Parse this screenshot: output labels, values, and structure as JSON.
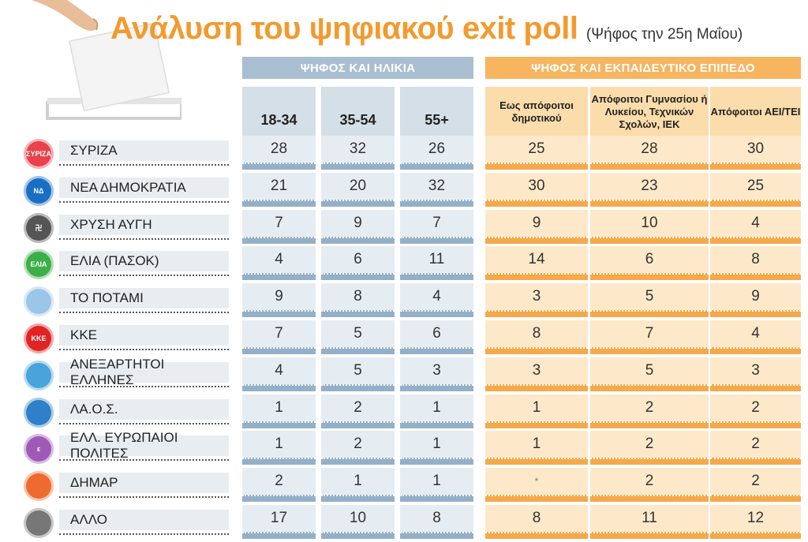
{
  "title": "Ανάλυση του ψηφιακού exit poll",
  "subtitle": "(Ψήφος την 25η Μαΐου)",
  "colors": {
    "accent": "#f39a2e",
    "age_header": "#a9bfd1",
    "edu_header": "#f7b55f"
  },
  "headers": {
    "age": "ΨΗΦΟΣ ΚΑΙ ΗΛΙΚΙΑ",
    "edu": "ΨΗΦΟΣ ΚΑΙ ΕΚΠΑΙΔΕΥΤΙΚΟ ΕΠΙΠΕΔΟ"
  },
  "chart_data": {
    "type": "table",
    "title": "Ανάλυση του ψηφιακού exit poll",
    "age_columns": [
      "18-34",
      "35-54",
      "55+"
    ],
    "edu_columns": [
      "Εως απόφοιτοι δημοτικού",
      "Απόφοιτοι Γυμνασίου ή Λυκείου, Τεχνικών Σχολών, ΙΕΚ",
      "Απόφοιτοι ΑΕΙ/ΤΕΙ"
    ],
    "rows": [
      {
        "party": "ΣΥΡΙΖΑ",
        "logo": "ΣΥΡΙΖΑ",
        "color": "#e8424a",
        "age": [
          "28",
          "32",
          "26"
        ],
        "edu": [
          "25",
          "28",
          "30"
        ]
      },
      {
        "party": "ΝΕΑ ΔΗΜΟΚΡΑΤΙΑ",
        "logo": "ΝΔ",
        "color": "#1a6fc4",
        "age": [
          "21",
          "20",
          "32"
        ],
        "edu": [
          "30",
          "23",
          "25"
        ]
      },
      {
        "party": "ΧΡΥΣΗ ΑΥΓΗ",
        "logo": "卍",
        "color": "#555555",
        "age": [
          "7",
          "9",
          "7"
        ],
        "edu": [
          "9",
          "10",
          "4"
        ]
      },
      {
        "party": "ΕΛΙΑ (ΠΑΣΟΚ)",
        "logo": "ΕΛΙΑ",
        "color": "#3cae4a",
        "age": [
          "4",
          "6",
          "11"
        ],
        "edu": [
          "14",
          "6",
          "8"
        ]
      },
      {
        "party": "ΤΟ ΠΟΤΑΜΙ",
        "logo": "",
        "color": "#9cc6e8",
        "age": [
          "9",
          "8",
          "4"
        ],
        "edu": [
          "3",
          "5",
          "9"
        ]
      },
      {
        "party": "ΚΚΕ",
        "logo": "ΚΚΕ",
        "color": "#e02424",
        "age": [
          "7",
          "5",
          "6"
        ],
        "edu": [
          "8",
          "7",
          "4"
        ]
      },
      {
        "party": "ΑΝΕΞΑΡΤΗΤΟΙ ΕΛΛΗΝΕΣ",
        "logo": "",
        "color": "#4aa3db",
        "age": [
          "4",
          "5",
          "3"
        ],
        "edu": [
          "3",
          "5",
          "3"
        ]
      },
      {
        "party": "ΛΑ.Ο.Σ.",
        "logo": "",
        "color": "#2f7fc9",
        "age": [
          "1",
          "2",
          "1"
        ],
        "edu": [
          "1",
          "2",
          "2"
        ]
      },
      {
        "party": "ΕΛΛ. ΕΥΡΩΠΑΙΟΙ ΠΟΛΙΤΕΣ",
        "logo": "ε",
        "color": "#9f5ab8",
        "age": [
          "1",
          "2",
          "1"
        ],
        "edu": [
          "1",
          "2",
          "2"
        ]
      },
      {
        "party": "ΔΗΜΑΡ",
        "logo": "",
        "color": "#ef6a2e",
        "age": [
          "2",
          "1",
          "1"
        ],
        "edu": [
          "*",
          "2",
          "2"
        ]
      },
      {
        "party": "ΑΛΛΟ",
        "logo": "",
        "color": "#777777",
        "age": [
          "17",
          "10",
          "8"
        ],
        "edu": [
          "8",
          "11",
          "12"
        ]
      }
    ]
  }
}
